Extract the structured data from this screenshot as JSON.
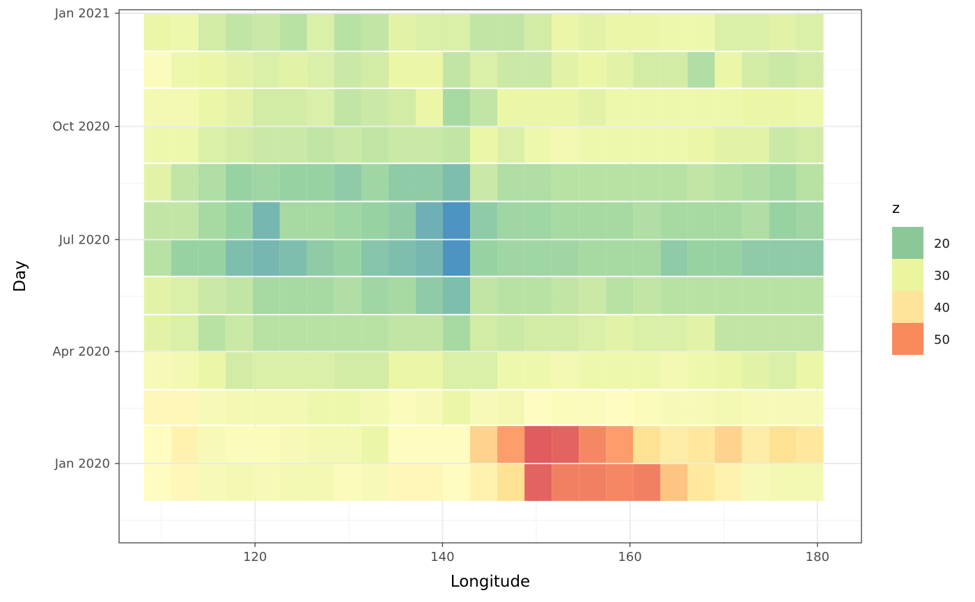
{
  "chart_data": {
    "type": "heatmap",
    "title": "",
    "xlabel": "Longitude",
    "ylabel": "Day",
    "xlim": [
      105.5,
      184.7
    ],
    "x_ticks": [
      120,
      140,
      160,
      180
    ],
    "x_start": 109.6,
    "x_step": 2.9,
    "grid": true,
    "y_ticks": [
      {
        "label": "Jan 2021",
        "date": "2021-01-01"
      },
      {
        "label": "Oct 2020",
        "date": "2020-10-01"
      },
      {
        "label": "Jul 2020",
        "date": "2020-07-01"
      },
      {
        "label": "Apr 2020",
        "date": "2020-04-01"
      },
      {
        "label": "Jan 2020",
        "date": "2020-01-01"
      }
    ],
    "months": [
      "2020-12",
      "2020-11",
      "2020-10",
      "2020-09",
      "2020-08",
      "2020-07",
      "2020-06",
      "2020-05",
      "2020-04",
      "2020-03",
      "2020-02",
      "2020-01",
      "2019-12"
    ],
    "z": [
      [
        30,
        31,
        27,
        25,
        26,
        24,
        28,
        24,
        25,
        29,
        28,
        28,
        25,
        25,
        27,
        30,
        29,
        30,
        30,
        31,
        31,
        28,
        28,
        29,
        28
      ],
      [
        34,
        31,
        30,
        29,
        28,
        29,
        28,
        26,
        27,
        30,
        30,
        25,
        28,
        26,
        26,
        29,
        30,
        29,
        27,
        27,
        23,
        30,
        27,
        26,
        27
      ],
      [
        32,
        32,
        30,
        29,
        27,
        27,
        28,
        25,
        26,
        27,
        30,
        22,
        25,
        30,
        30,
        30,
        29,
        31,
        31,
        31,
        31,
        31,
        30,
        30,
        31
      ],
      [
        31,
        31,
        28,
        27,
        26,
        26,
        25,
        26,
        25,
        26,
        26,
        25,
        30,
        28,
        31,
        32,
        31,
        31,
        31,
        31,
        30,
        29,
        29,
        26,
        27
      ],
      [
        29,
        25,
        23,
        20,
        21,
        20,
        20,
        19,
        21,
        19,
        19,
        17,
        26,
        23,
        23,
        24,
        24,
        24,
        24,
        24,
        25,
        24,
        23,
        22,
        24
      ],
      [
        25,
        25,
        22,
        20,
        16,
        22,
        22,
        21,
        20,
        19,
        15,
        11,
        19,
        21,
        21,
        22,
        22,
        22,
        23,
        22,
        22,
        22,
        23,
        20,
        21
      ],
      [
        24,
        20,
        20,
        17,
        16,
        17,
        19,
        20,
        18,
        17,
        16,
        11,
        20,
        21,
        21,
        21,
        22,
        22,
        22,
        19,
        20,
        20,
        19,
        19,
        19
      ],
      [
        29,
        28,
        26,
        25,
        22,
        22,
        22,
        23,
        21,
        22,
        19,
        17,
        25,
        24,
        24,
        25,
        26,
        24,
        25,
        24,
        24,
        24,
        24,
        24,
        24
      ],
      [
        29,
        28,
        24,
        26,
        24,
        24,
        24,
        24,
        24,
        25,
        25,
        22,
        27,
        26,
        27,
        27,
        28,
        29,
        28,
        28,
        29,
        25,
        25,
        25,
        25
      ],
      [
        33,
        32,
        30,
        27,
        28,
        28,
        28,
        27,
        27,
        30,
        30,
        28,
        28,
        31,
        31,
        32,
        31,
        31,
        31,
        32,
        31,
        30,
        29,
        28,
        30
      ],
      [
        36,
        36,
        33,
        32,
        32,
        32,
        31,
        31,
        32,
        34,
        33,
        30,
        33,
        32,
        35,
        34,
        34,
        35,
        34,
        33,
        33,
        32,
        33,
        33,
        33
      ],
      [
        35,
        37,
        33,
        34,
        34,
        33,
        32,
        32,
        30,
        35,
        35,
        35,
        42,
        49,
        58,
        57,
        52,
        49,
        40,
        38,
        39,
        42,
        38,
        40,
        39
      ],
      [
        35,
        36,
        33,
        32,
        33,
        32,
        32,
        34,
        33,
        36,
        36,
        35,
        37,
        40,
        57,
        53,
        53,
        52,
        53,
        44,
        39,
        37,
        33,
        32,
        32
      ]
    ],
    "legend": {
      "title": "z",
      "labels": [
        "20",
        "30",
        "40",
        "50"
      ],
      "colors": [
        "#8cc798",
        "#eaf59d",
        "#fee49b",
        "#f98a5b"
      ]
    },
    "colors": {
      "low": "#3583c1",
      "mid": "#8ecf9a",
      "mid2": "#e9f6a0",
      "mid3": "#fffcbc",
      "high1": "#fee08b",
      "high2": "#fc8d59",
      "high3": "#d53e4f"
    }
  }
}
